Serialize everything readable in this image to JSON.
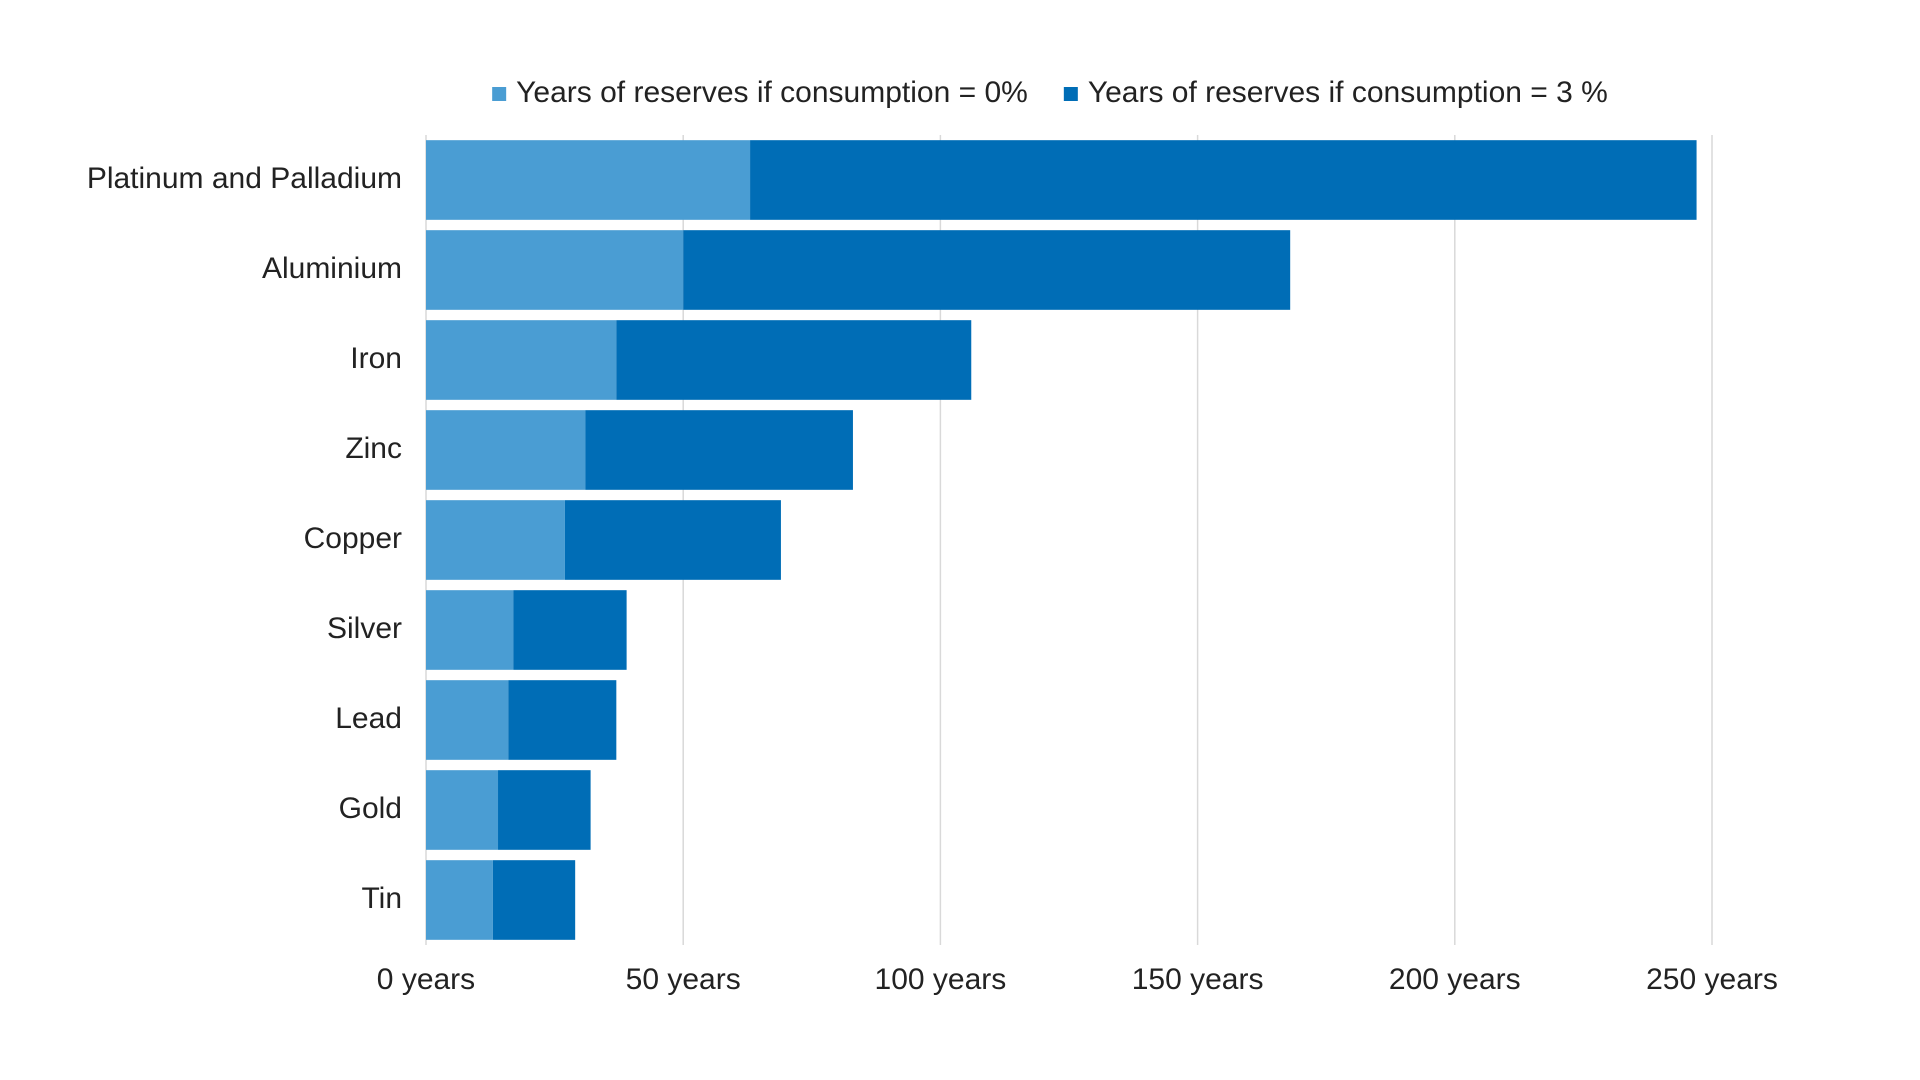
{
  "chart_data": {
    "type": "stacked-barh",
    "categories": [
      "Platinum and Palladium",
      "Aluminium",
      "Iron",
      "Zinc",
      "Copper",
      "Silver",
      "Lead",
      "Gold",
      "Tin"
    ],
    "series": [
      {
        "name": "Years of reserves if consumption = 0%",
        "color": "#4a9dd3",
        "values": [
          63,
          50,
          37,
          31,
          27,
          17,
          16,
          14,
          13
        ]
      },
      {
        "name": "Years of reserves if consumption = 3 %",
        "color": "#006db6",
        "values": [
          184,
          118,
          69,
          52,
          42,
          22,
          21,
          18,
          16
        ]
      }
    ],
    "xlim": [
      0,
      250
    ],
    "xticks": [
      {
        "value": 0,
        "label": "0 years"
      },
      {
        "value": 50,
        "label": "50 years"
      },
      {
        "value": 100,
        "label": "100 years"
      },
      {
        "value": 150,
        "label": "150 years"
      },
      {
        "value": 200,
        "label": "200 years"
      },
      {
        "value": 250,
        "label": "250 years"
      }
    ],
    "grid": true,
    "legend": "top"
  }
}
